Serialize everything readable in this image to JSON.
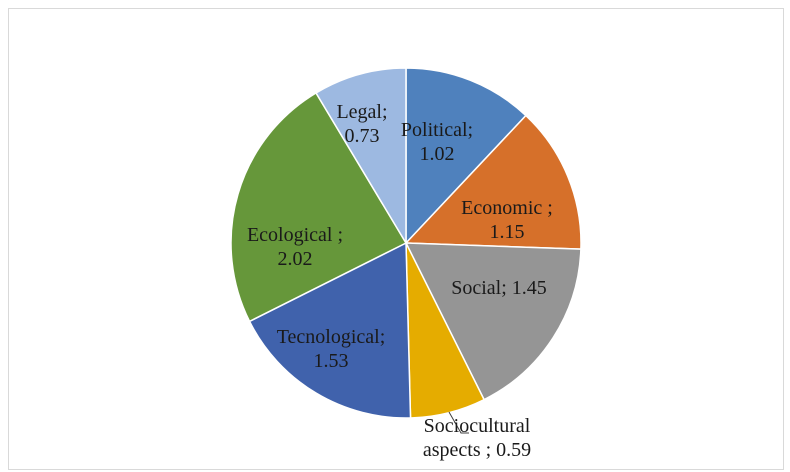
{
  "chart_data": {
    "type": "pie",
    "start_angle_deg": 0,
    "direction": "clockwise",
    "slices": [
      {
        "name": "Political",
        "value": 1.02,
        "color": "#4F81BD",
        "label_lines": [
          "Political;",
          "1.02"
        ]
      },
      {
        "name": "Economic",
        "value": 1.15,
        "color": "#D6702A",
        "label_lines": [
          "Economic ;",
          "1.15"
        ]
      },
      {
        "name": "Social",
        "value": 1.45,
        "color": "#959595",
        "label_lines": [
          "Social; 1.45"
        ]
      },
      {
        "name": "Sociocultural aspects",
        "value": 0.59,
        "color": "#E5AC00",
        "label_lines": [
          "Sociocultural",
          "aspects ; 0.59"
        ]
      },
      {
        "name": "Tecnological",
        "value": 1.53,
        "color": "#4062AC",
        "label_lines": [
          "Tecnological;",
          "1.53"
        ]
      },
      {
        "name": "Ecological",
        "value": 2.02,
        "color": "#66973A",
        "label_lines": [
          "Ecological ;",
          "2.02"
        ]
      },
      {
        "name": "Legal",
        "value": 0.73,
        "color": "#9DB9E1",
        "label_lines": [
          "Legal;",
          "0.73"
        ]
      }
    ]
  }
}
